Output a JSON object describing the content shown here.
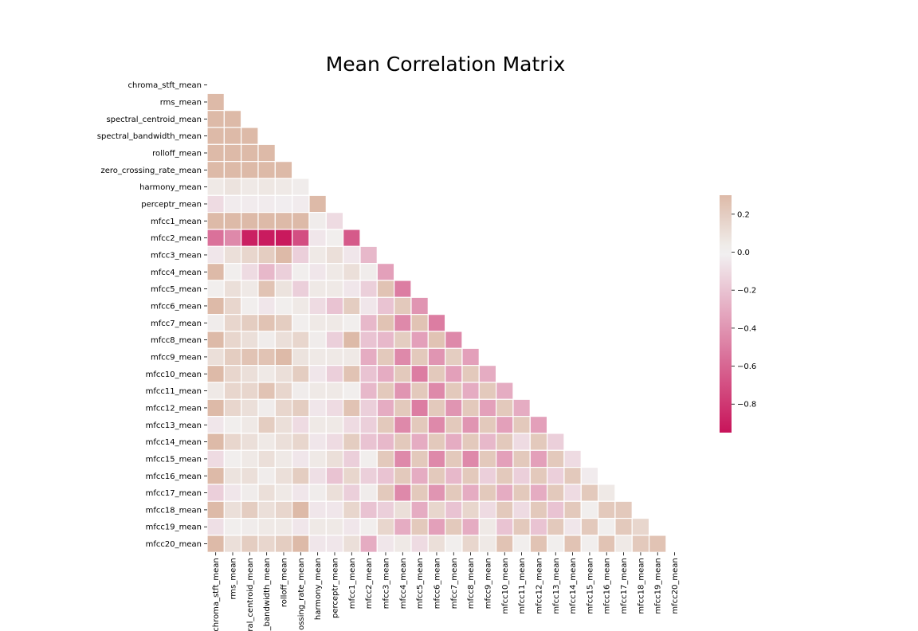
{
  "chart_data": {
    "type": "heatmap",
    "title": "Mean Correlation Matrix",
    "mask": "upper-triangle",
    "variables": [
      "chroma_stft_mean",
      "rms_mean",
      "spectral_centroid_mean",
      "spectral_bandwidth_mean",
      "rolloff_mean",
      "zero_crossing_rate_mean",
      "harmony_mean",
      "perceptr_mean",
      "mfcc1_mean",
      "mfcc2_mean",
      "mfcc3_mean",
      "mfcc4_mean",
      "mfcc5_mean",
      "mfcc6_mean",
      "mfcc7_mean",
      "mfcc8_mean",
      "mfcc9_mean",
      "mfcc10_mean",
      "mfcc11_mean",
      "mfcc12_mean",
      "mfcc13_mean",
      "mfcc14_mean",
      "mfcc15_mean",
      "mfcc16_mean",
      "mfcc17_mean",
      "mfcc18_mean",
      "mfcc19_mean",
      "mfcc20_mean"
    ],
    "x_tick_labels": [
      "chroma_stft_mean",
      "rms_mean",
      "ral_centroid_mean",
      "_bandwidth_mean",
      "rolloff_mean",
      "ossing_rate_mean",
      "harmony_mean",
      "perceptr_mean",
      "mfcc1_mean",
      "mfcc2_mean",
      "mfcc3_mean",
      "mfcc4_mean",
      "mfcc5_mean",
      "mfcc6_mean",
      "mfcc7_mean",
      "mfcc8_mean",
      "mfcc9_mean",
      "mfcc10_mean",
      "mfcc11_mean",
      "mfcc12_mean",
      "mfcc13_mean",
      "mfcc14_mean",
      "mfcc15_mean",
      "mfcc16_mean",
      "mfcc17_mean",
      "mfcc18_mean",
      "mfcc19_mean",
      "mfcc20_mean"
    ],
    "matrix_lower": [
      [],
      [
        0.3
      ],
      [
        0.3,
        0.3
      ],
      [
        0.3,
        0.3,
        0.3
      ],
      [
        0.3,
        0.3,
        0.3,
        0.3
      ],
      [
        0.3,
        0.3,
        0.3,
        0.3,
        0.3
      ],
      [
        0.05,
        0.08,
        0.05,
        0.06,
        0.05,
        0.03
      ],
      [
        -0.1,
        -0.03,
        -0.03,
        -0.03,
        -0.02,
        -0.03,
        0.3
      ],
      [
        0.3,
        0.3,
        0.3,
        0.3,
        0.3,
        0.3,
        0.03,
        -0.1
      ],
      [
        -0.55,
        -0.45,
        -0.9,
        -0.92,
        -0.93,
        -0.7,
        -0.05,
        0.02,
        -0.65
      ],
      [
        -0.05,
        0.1,
        0.15,
        0.2,
        0.3,
        -0.15,
        0.05,
        0.1,
        -0.05,
        -0.25
      ],
      [
        0.3,
        0.02,
        -0.1,
        -0.25,
        -0.15,
        0.02,
        -0.05,
        0.05,
        0.1,
        0.03,
        -0.35
      ],
      [
        0.02,
        0.1,
        0.05,
        0.25,
        0.08,
        -0.15,
        0.05,
        0.05,
        -0.05,
        -0.15,
        0.25,
        -0.5
      ],
      [
        0.3,
        0.15,
        0.02,
        -0.05,
        0.02,
        0.05,
        -0.1,
        -0.2,
        0.2,
        -0.05,
        -0.2,
        0.22,
        -0.4
      ],
      [
        0.03,
        0.15,
        0.2,
        0.25,
        0.2,
        0.02,
        0.05,
        0.05,
        0.02,
        -0.25,
        0.25,
        -0.45,
        0.25,
        -0.5
      ],
      [
        0.3,
        0.15,
        0.1,
        0.03,
        0.1,
        0.15,
        0.03,
        -0.15,
        0.3,
        -0.2,
        -0.25,
        0.2,
        -0.35,
        0.25,
        -0.45
      ],
      [
        0.1,
        0.2,
        0.25,
        0.25,
        0.3,
        0.08,
        0.05,
        0.05,
        0.05,
        -0.3,
        0.22,
        -0.45,
        0.22,
        -0.4,
        0.2,
        -0.35
      ],
      [
        0.3,
        0.15,
        0.1,
        0.05,
        0.1,
        0.2,
        -0.05,
        -0.15,
        0.25,
        -0.2,
        -0.3,
        0.22,
        -0.5,
        0.22,
        -0.35,
        0.22,
        -0.3
      ],
      [
        0.05,
        0.15,
        0.15,
        0.25,
        0.15,
        0.03,
        0.05,
        0.05,
        0.02,
        -0.25,
        0.22,
        -0.4,
        0.22,
        -0.45,
        0.22,
        -0.3,
        0.22,
        -0.3
      ],
      [
        0.3,
        0.15,
        0.1,
        0.03,
        0.15,
        0.2,
        -0.05,
        -0.1,
        0.25,
        -0.15,
        -0.3,
        0.22,
        -0.5,
        0.22,
        -0.4,
        0.22,
        -0.35,
        0.22,
        -0.3
      ],
      [
        -0.05,
        0.02,
        0.05,
        0.2,
        0.1,
        -0.1,
        0.05,
        0.05,
        -0.1,
        -0.15,
        0.22,
        -0.45,
        0.22,
        -0.45,
        0.22,
        -0.4,
        0.22,
        -0.35,
        0.22,
        -0.35
      ],
      [
        0.3,
        0.15,
        0.1,
        0.05,
        0.1,
        0.15,
        -0.05,
        -0.1,
        0.2,
        -0.2,
        -0.25,
        0.22,
        -0.3,
        0.22,
        -0.3,
        0.22,
        -0.25,
        0.22,
        -0.1,
        0.22,
        -0.15
      ],
      [
        -0.1,
        0.02,
        0.05,
        0.1,
        0.05,
        -0.05,
        0.05,
        0.1,
        -0.15,
        0.02,
        0.22,
        -0.45,
        0.22,
        -0.45,
        0.22,
        -0.45,
        0.22,
        -0.35,
        0.22,
        -0.35,
        0.22,
        -0.1
      ],
      [
        0.3,
        0.08,
        0.1,
        0.03,
        0.1,
        0.2,
        -0.08,
        -0.2,
        0.15,
        -0.15,
        -0.2,
        0.22,
        -0.3,
        0.22,
        -0.25,
        0.22,
        -0.15,
        0.22,
        -0.15,
        0.22,
        -0.15,
        0.22,
        -0.03
      ],
      [
        -0.15,
        -0.05,
        0.03,
        0.1,
        0.05,
        -0.05,
        0.03,
        0.1,
        -0.15,
        0.03,
        0.22,
        -0.45,
        0.22,
        -0.4,
        0.22,
        -0.3,
        0.22,
        -0.3,
        0.22,
        -0.3,
        0.22,
        -0.1,
        0.22,
        0.05
      ],
      [
        0.3,
        0.1,
        0.2,
        0.1,
        0.15,
        0.3,
        -0.05,
        -0.05,
        0.15,
        -0.2,
        -0.15,
        0.1,
        -0.3,
        0.15,
        -0.2,
        0.15,
        -0.1,
        0.22,
        -0.1,
        0.22,
        -0.2,
        0.22,
        0.02,
        0.22,
        0.22
      ],
      [
        -0.08,
        0.02,
        0.03,
        0.05,
        0.05,
        -0.05,
        0.05,
        0.05,
        -0.05,
        0.02,
        0.15,
        -0.3,
        0.22,
        -0.35,
        0.22,
        -0.3,
        0.05,
        -0.2,
        0.22,
        -0.2,
        0.22,
        -0.05,
        0.22,
        0.02,
        0.22,
        0.15
      ],
      [
        0.3,
        0.1,
        0.2,
        0.15,
        0.2,
        0.3,
        -0.05,
        -0.05,
        0.1,
        -0.3,
        -0.05,
        0.05,
        -0.1,
        0.1,
        0.02,
        0.15,
        0.05,
        0.25,
        0.02,
        0.25,
        0.02,
        0.25,
        0.02,
        0.25,
        0.05,
        0.22,
        0.25
      ]
    ],
    "colorbar": {
      "min": -0.95,
      "max": 0.3,
      "ticks": [
        0.2,
        0.0,
        -0.2,
        -0.4,
        -0.6,
        -0.8
      ],
      "tick_labels": [
        "0.2",
        "0.0",
        "−0.2",
        "−0.4",
        "−0.6",
        "−0.8"
      ]
    },
    "colors": {
      "negative": "#c8145a",
      "center": "#f2f2f2",
      "positive": "#ddbaa8",
      "grid": "#ffffff"
    }
  }
}
